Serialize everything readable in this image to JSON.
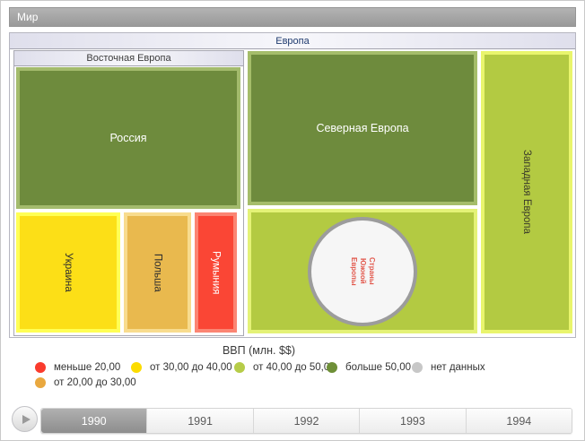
{
  "window": {
    "root_label": "Мир"
  },
  "treemap": {
    "europe": {
      "label": "Европа",
      "eastern_europe": {
        "label": "Восточная Европа",
        "russia": {
          "label": "Россия",
          "fill": "#6e8b3d",
          "border": "#a3bb6d",
          "text_color": "#ffffff"
        },
        "ukraine": {
          "label": "Украина",
          "fill": "#fcdf17",
          "border": "#ffff55",
          "text_color": "#2e2e2e"
        },
        "poland": {
          "label": "Польша",
          "fill": "#e9b94e",
          "border": "#f8dc8e",
          "text_color": "#2e2e2e"
        },
        "romania": {
          "label": "Румыния",
          "fill": "#fa4635",
          "border": "#fb8573",
          "text_color": "#ffffff"
        }
      },
      "northern_europe": {
        "label": "Северная Европа",
        "fill": "#6e8b3d",
        "border": "#a5bd6a",
        "text_color": "#ffffff"
      },
      "southern_europe": {
        "fill": "#b3ca42",
        "border": "#e4f277",
        "circle": {
          "fill": "#f6f6f6",
          "border": "#9c9c9c",
          "text_color": "#e2574b",
          "label_lines": [
            "Страны",
            "Южной",
            "Европы"
          ]
        }
      },
      "western_europe": {
        "label": "Западная Европа",
        "fill": "#b3ca42",
        "border": "#e9f56d",
        "text_color": "#3a3a2a"
      }
    }
  },
  "legend": {
    "title": "ВВП (млн. $$)",
    "items": [
      {
        "label": "меньше 20,00",
        "color": "#fa3b2d"
      },
      {
        "label": "от 20,00 до 30,00",
        "color": "#e9a83f"
      },
      {
        "label": "от 30,00 до 40,00",
        "color": "#fcdc00"
      },
      {
        "label": "от 40,00 до 50,00",
        "color": "#b6cc48"
      },
      {
        "label": "больше 50,00",
        "color": "#6e8f37"
      },
      {
        "label": "нет данных",
        "color": "#c7c7c7"
      }
    ]
  },
  "timeline": {
    "selected_year": "1990",
    "years": [
      "1990",
      "1991",
      "1992",
      "1993",
      "1994"
    ]
  },
  "chart_data": {
    "type": "treemap",
    "legend_title": "ВВП (млн. $$)",
    "root": "Мир",
    "year_shown": "1990",
    "legend_bins": [
      "меньше 20,00",
      "от 20,00 до 30,00",
      "от 30,00 до 40,00",
      "от 40,00 до 50,00",
      "больше 50,00",
      "нет данных"
    ],
    "nodes": [
      {
        "name": "Европа",
        "children": [
          {
            "name": "Восточная Европа",
            "children": [
              {
                "name": "Россия",
                "gdp_bin": "больше 50,00"
              },
              {
                "name": "Украина",
                "gdp_bin": "от 30,00 до 40,00"
              },
              {
                "name": "Польша",
                "gdp_bin": "от 20,00 до 30,00"
              },
              {
                "name": "Румыния",
                "gdp_bin": "меньше 20,00"
              }
            ]
          },
          {
            "name": "Северная Европа",
            "gdp_bin": "больше 50,00"
          },
          {
            "name": "Страны Южной Европы",
            "gdp_bin": "нет данных"
          },
          {
            "name": "Западная Европа",
            "gdp_bin": "от 40,00 до 50,00"
          }
        ]
      }
    ]
  }
}
